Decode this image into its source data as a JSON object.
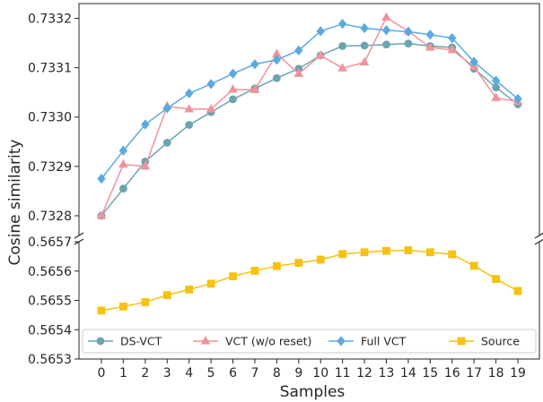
{
  "chart_data": {
    "type": "line",
    "xlabel": "Samples",
    "ylabel": "Cosine similarity",
    "x": [
      0,
      1,
      2,
      3,
      4,
      5,
      6,
      7,
      8,
      9,
      10,
      11,
      12,
      13,
      14,
      15,
      16,
      17,
      18,
      19
    ],
    "broken_y_axis": true,
    "upper_panel": {
      "ylim": [
        0.73276,
        0.73323
      ],
      "yticks": [
        "0.7328",
        "0.7329",
        "0.7330",
        "0.7331",
        "0.7332"
      ],
      "ytick_values": [
        0.7328,
        0.7329,
        0.733,
        0.7331,
        0.7332
      ]
    },
    "lower_panel": {
      "ylim": [
        0.5653,
        0.5657
      ],
      "yticks": [
        "0.5653",
        "0.5654",
        "0.5655",
        "0.5656",
        "0.5657"
      ],
      "ytick_values": [
        0.5653,
        0.5654,
        0.5655,
        0.5656,
        0.5657
      ]
    },
    "legend_position": "bottom",
    "series": [
      {
        "name": "DS-VCT",
        "panel": "upper",
        "color": "#6aa4b0",
        "marker": "circle",
        "values": [
          0.7328,
          0.732855,
          0.73291,
          0.732948,
          0.732984,
          0.73301,
          0.733036,
          0.733058,
          0.733079,
          0.733098,
          0.733125,
          0.733144,
          0.733145,
          0.733147,
          0.733149,
          0.733144,
          0.733141,
          0.733098,
          0.73306,
          0.733026
        ]
      },
      {
        "name": "VCT (w/o reset)",
        "panel": "upper",
        "color": "#f0939a",
        "marker": "triangle",
        "values": [
          0.7328,
          0.732904,
          0.7329,
          0.733022,
          0.733016,
          0.733016,
          0.733056,
          0.733055,
          0.733128,
          0.733088,
          0.733125,
          0.733099,
          0.733111,
          0.733202,
          0.733174,
          0.733141,
          0.733136,
          0.733102,
          0.733039,
          0.733031
        ]
      },
      {
        "name": "Full VCT",
        "panel": "upper",
        "color": "#5aaae0",
        "marker": "diamond",
        "values": [
          0.732875,
          0.732932,
          0.732985,
          0.733018,
          0.733048,
          0.733067,
          0.733088,
          0.733107,
          0.733116,
          0.733135,
          0.733174,
          0.733189,
          0.73318,
          0.733176,
          0.733173,
          0.733167,
          0.73316,
          0.733112,
          0.733074,
          0.733037
        ]
      },
      {
        "name": "Source",
        "panel": "lower",
        "color": "#f5c210",
        "marker": "square",
        "values": [
          0.565465,
          0.565479,
          0.565494,
          0.565518,
          0.565537,
          0.565557,
          0.565582,
          0.565601,
          0.565617,
          0.565628,
          0.565639,
          0.565658,
          0.565664,
          0.565669,
          0.565671,
          0.565664,
          0.565657,
          0.565618,
          0.565573,
          0.565532
        ]
      }
    ]
  }
}
